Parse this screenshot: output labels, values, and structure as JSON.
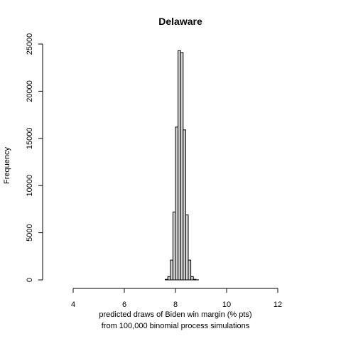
{
  "chart_data": {
    "type": "bar",
    "title": "Delaware",
    "xlabel_line1": "predicted draws of Biden win margin (% pts)",
    "xlabel_line2": "from 100,000 binomial process simulations",
    "ylabel": "Frequency",
    "x_ticks": [
      4,
      6,
      8,
      10,
      12
    ],
    "y_ticks": [
      0,
      5000,
      10000,
      15000,
      20000,
      25000
    ],
    "xlim": [
      4,
      12
    ],
    "ylim": [
      0,
      25000
    ],
    "grid": false,
    "legend": "none",
    "bin_width": 0.1,
    "bins": [
      {
        "x0": 7.6,
        "x1": 7.7,
        "value": 60
      },
      {
        "x0": 7.7,
        "x1": 7.8,
        "value": 350
      },
      {
        "x0": 7.8,
        "x1": 7.9,
        "value": 2100
      },
      {
        "x0": 7.9,
        "x1": 8.0,
        "value": 7200
      },
      {
        "x0": 8.0,
        "x1": 8.1,
        "value": 16200
      },
      {
        "x0": 8.1,
        "x1": 8.2,
        "value": 24300
      },
      {
        "x0": 8.2,
        "x1": 8.3,
        "value": 24100
      },
      {
        "x0": 8.3,
        "x1": 8.4,
        "value": 15900
      },
      {
        "x0": 8.4,
        "x1": 8.5,
        "value": 6900
      },
      {
        "x0": 8.5,
        "x1": 8.6,
        "value": 2100
      },
      {
        "x0": 8.6,
        "x1": 8.7,
        "value": 350
      },
      {
        "x0": 8.7,
        "x1": 8.8,
        "value": 60
      },
      {
        "x0": 8.8,
        "x1": 8.9,
        "value": 10
      }
    ],
    "colors": {
      "bar_fill": "#d3d3d3",
      "bar_stroke": "#000000",
      "text": "#000000",
      "background": "#ffffff"
    }
  }
}
